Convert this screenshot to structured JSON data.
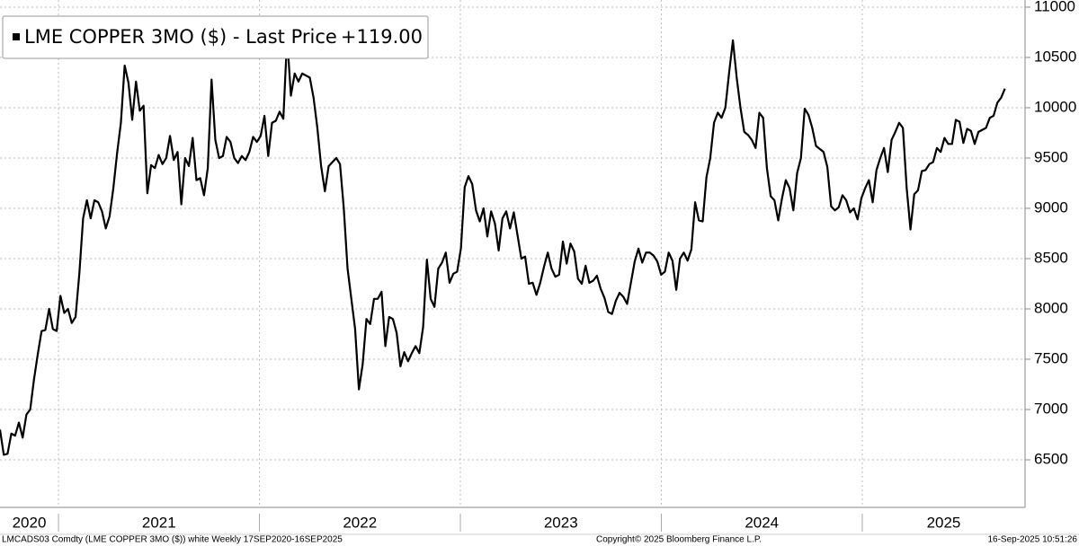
{
  "chart_data": {
    "type": "line",
    "x": [
      2020.709,
      2020.7278,
      2020.7466,
      2020.7654,
      2020.7842,
      2020.803,
      2020.8218,
      2020.8406,
      2020.8594,
      2020.8782,
      2020.897,
      2020.9158,
      2020.9346,
      2020.9534,
      2020.9722,
      2020.991,
      2021.0098,
      2021.0286,
      2021.0474,
      2021.0662,
      2021.085,
      2021.1038,
      2021.1226,
      2021.1414,
      2021.1602,
      2021.179,
      2021.1978,
      2021.2166,
      2021.2354,
      2021.2542,
      2021.273,
      2021.2918,
      2021.3106,
      2021.3294,
      2021.3482,
      2021.367,
      2021.3858,
      2021.4046,
      2021.4234,
      2021.4422,
      2021.461,
      2021.4798,
      2021.4986,
      2021.5174,
      2021.5362,
      2021.555,
      2021.5738,
      2021.5926,
      2021.6114,
      2021.6302,
      2021.649,
      2021.6678,
      2021.6866,
      2021.7054,
      2021.7242,
      2021.743,
      2021.7618,
      2021.7806,
      2021.7994,
      2021.8182,
      2021.837,
      2021.8558,
      2021.8746,
      2021.8934,
      2021.9122,
      2021.931,
      2021.9498,
      2021.9686,
      2021.9874,
      2022.0062,
      2022.025,
      2022.0438,
      2022.0626,
      2022.0814,
      2022.1002,
      2022.119,
      2022.1378,
      2022.1566,
      2022.1754,
      2022.1942,
      2022.213,
      2022.2318,
      2022.2506,
      2022.2694,
      2022.2882,
      2022.307,
      2022.3258,
      2022.3446,
      2022.3634,
      2022.3822,
      2022.401,
      2022.4198,
      2022.4386,
      2022.4574,
      2022.4762,
      2022.495,
      2022.5138,
      2022.5326,
      2022.5514,
      2022.5702,
      2022.589,
      2022.6078,
      2022.6266,
      2022.6454,
      2022.6642,
      2022.683,
      2022.7018,
      2022.7206,
      2022.7394,
      2022.7582,
      2022.777,
      2022.7958,
      2022.8146,
      2022.8334,
      2022.8522,
      2022.871,
      2022.8898,
      2022.9086,
      2022.9274,
      2022.9462,
      2022.965,
      2022.9838,
      2023.0026,
      2023.0214,
      2023.0402,
      2023.059,
      2023.0778,
      2023.0966,
      2023.1154,
      2023.1342,
      2023.153,
      2023.1718,
      2023.1906,
      2023.2094,
      2023.2282,
      2023.247,
      2023.2658,
      2023.2846,
      2023.3034,
      2023.3222,
      2023.341,
      2023.3598,
      2023.3786,
      2023.3974,
      2023.4162,
      2023.435,
      2023.4538,
      2023.4726,
      2023.4914,
      2023.5102,
      2023.529,
      2023.5478,
      2023.5666,
      2023.5854,
      2023.6042,
      2023.623,
      2023.6418,
      2023.6606,
      2023.6794,
      2023.6982,
      2023.717,
      2023.7358,
      2023.7546,
      2023.7734,
      2023.7922,
      2023.811,
      2023.8298,
      2023.8486,
      2023.8674,
      2023.8862,
      2023.905,
      2023.9238,
      2023.9426,
      2023.9614,
      2023.9802,
      2023.999,
      2024.0178,
      2024.0366,
      2024.0554,
      2024.0742,
      2024.093,
      2024.1118,
      2024.1306,
      2024.1494,
      2024.1682,
      2024.187,
      2024.2058,
      2024.2246,
      2024.2434,
      2024.2622,
      2024.281,
      2024.2998,
      2024.3186,
      2024.3374,
      2024.3562,
      2024.375,
      2024.3938,
      2024.4126,
      2024.4314,
      2024.4502,
      2024.469,
      2024.4878,
      2024.5066,
      2024.5254,
      2024.5442,
      2024.563,
      2024.5818,
      2024.6006,
      2024.6194,
      2024.6382,
      2024.657,
      2024.6758,
      2024.6946,
      2024.7134,
      2024.7322,
      2024.751,
      2024.7698,
      2024.7886,
      2024.8074,
      2024.8262,
      2024.845,
      2024.8638,
      2024.8826,
      2024.9014,
      2024.9202,
      2024.939,
      2024.9578,
      2024.9766,
      2024.9954,
      2025.0142,
      2025.033,
      2025.0518,
      2025.0706,
      2025.0894,
      2025.1082,
      2025.127,
      2025.1458,
      2025.1646,
      2025.1834,
      2025.2022,
      2025.221,
      2025.2398,
      2025.2586,
      2025.2774,
      2025.2962,
      2025.315,
      2025.3338,
      2025.3526,
      2025.3714,
      2025.3902,
      2025.409,
      2025.4278,
      2025.4466,
      2025.4654,
      2025.4842,
      2025.503,
      2025.5218,
      2025.5406,
      2025.5594,
      2025.5782,
      2025.597,
      2025.6158,
      2025.6346,
      2025.6534,
      2025.6722,
      2025.691,
      2025.7098
    ],
    "series": [
      {
        "name": "LME COPPER 3MO ($) - Last Price",
        "color": "#000000",
        "last_change": {
          "value": 119,
          "label": "+119.00"
        },
        "values": [
          6800,
          6550,
          6560,
          6760,
          6740,
          6870,
          6720,
          6950,
          7000,
          7300,
          7550,
          7780,
          7790,
          8000,
          7800,
          7780,
          8130,
          7960,
          8000,
          7860,
          7920,
          8350,
          8900,
          9080,
          8900,
          9080,
          9060,
          8970,
          8800,
          8920,
          9200,
          9550,
          9850,
          10420,
          10250,
          9880,
          10260,
          9970,
          10020,
          9150,
          9430,
          9400,
          9530,
          9440,
          9500,
          9720,
          9480,
          9560,
          9040,
          9500,
          9420,
          9700,
          9280,
          9300,
          9130,
          9400,
          10280,
          9680,
          9500,
          9520,
          9710,
          9660,
          9500,
          9450,
          9520,
          9480,
          9560,
          9710,
          9660,
          9720,
          9920,
          9520,
          9850,
          9870,
          9960,
          9890,
          10700,
          10120,
          10340,
          10260,
          10340,
          10320,
          10300,
          10100,
          9800,
          9420,
          9170,
          9420,
          9460,
          9500,
          9440,
          9000,
          8400,
          8100,
          7800,
          7200,
          7450,
          7900,
          7850,
          8100,
          8100,
          8170,
          7630,
          7920,
          7900,
          7760,
          7430,
          7570,
          7480,
          7560,
          7630,
          7560,
          7820,
          8490,
          8100,
          8020,
          8400,
          8460,
          8560,
          8260,
          8350,
          8370,
          8600,
          9210,
          9320,
          9240,
          8980,
          8870,
          9000,
          8720,
          8970,
          8850,
          8580,
          8900,
          8970,
          8800,
          8960,
          8730,
          8500,
          8520,
          8250,
          8260,
          8140,
          8260,
          8420,
          8560,
          8400,
          8320,
          8340,
          8670,
          8450,
          8650,
          8570,
          8300,
          8250,
          8430,
          8260,
          8280,
          8330,
          8200,
          8110,
          7970,
          7950,
          8080,
          8160,
          8120,
          8050,
          8260,
          8470,
          8600,
          8460,
          8560,
          8560,
          8530,
          8470,
          8340,
          8370,
          8560,
          8480,
          8190,
          8500,
          8560,
          8480,
          8590,
          9060,
          8880,
          8870,
          9310,
          9500,
          9850,
          9950,
          9900,
          10000,
          10350,
          10670,
          10300,
          10000,
          9760,
          9730,
          9680,
          9600,
          9950,
          9900,
          9400,
          9120,
          9080,
          8880,
          9100,
          9280,
          9200,
          8980,
          9350,
          9500,
          9990,
          9930,
          9800,
          9620,
          9590,
          9560,
          9410,
          9020,
          8980,
          9010,
          9130,
          9080,
          8960,
          9000,
          8890,
          9100,
          9200,
          9280,
          9060,
          9380,
          9500,
          9600,
          9360,
          9680,
          9760,
          9850,
          9800,
          9200,
          8790,
          9140,
          9180,
          9370,
          9380,
          9440,
          9460,
          9600,
          9560,
          9700,
          9640,
          9640,
          9880,
          9860,
          9650,
          9790,
          9770,
          9640,
          9760,
          9780,
          9800,
          9900,
          9920,
          10050,
          10100,
          10190
        ]
      }
    ],
    "xlim": [
      2020.709,
      2025.81
    ],
    "xticks": [
      2020,
      2021,
      2022,
      2023,
      2024,
      2025
    ],
    "ylim": [
      6027,
      11071
    ],
    "yticks": [
      6500,
      7000,
      7500,
      8000,
      8500,
      9000,
      9500,
      10000,
      10500,
      11000
    ],
    "grid": true,
    "legend": "top-left",
    "footer_left": "LMCADS03 Comdty (LME COPPER   3MO ($)) white  Weekly 17SEP2020-16SEP2025",
    "footer_center": "Copyright© 2025 Bloomberg Finance L.P.",
    "footer_right": "16-Sep-2025 10:51:26"
  }
}
